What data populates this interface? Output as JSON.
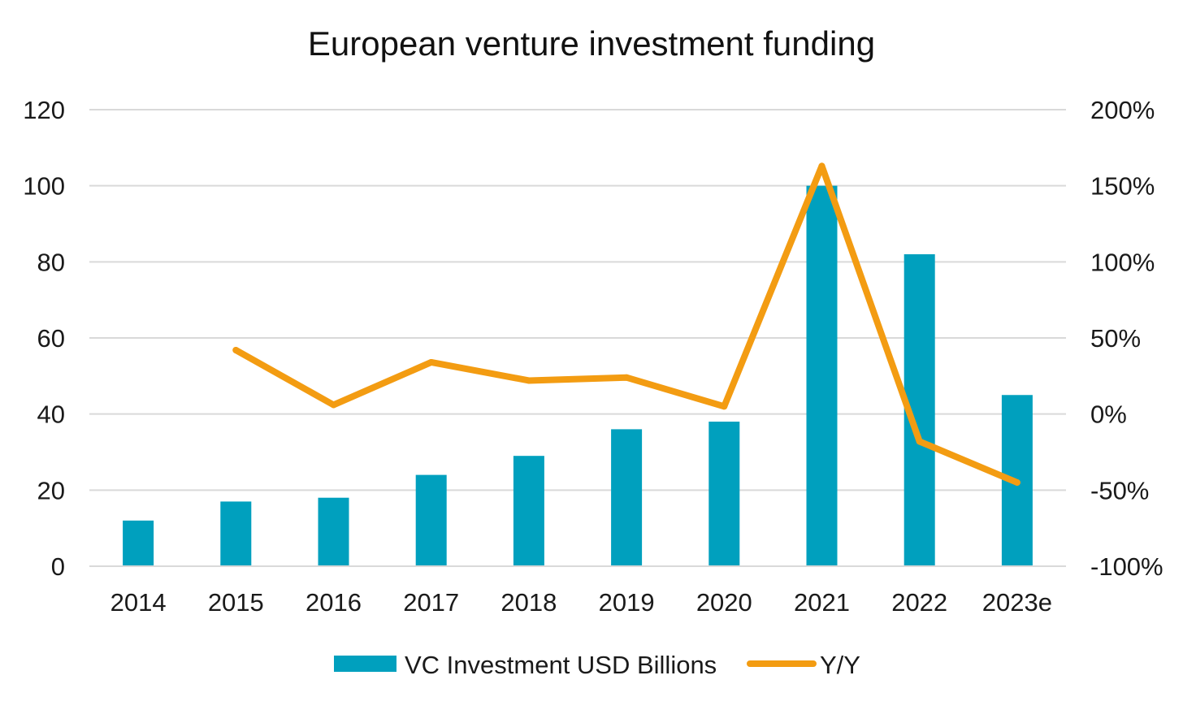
{
  "chart_data": {
    "type": "bar",
    "title": "European venture investment funding",
    "categories": [
      "2014",
      "2015",
      "2016",
      "2017",
      "2018",
      "2019",
      "2020",
      "2021",
      "2022",
      "2023e"
    ],
    "series": [
      {
        "name": "VC Investment USD Billions",
        "type": "bar",
        "axis": "left",
        "color": "#00a0be",
        "values": [
          12,
          17,
          18,
          24,
          29,
          36,
          38,
          100,
          82,
          45
        ]
      },
      {
        "name": "Y/Y",
        "type": "line",
        "axis": "right",
        "color": "#f39c12",
        "values": [
          null,
          42,
          6,
          34,
          22,
          24,
          5,
          163,
          -18,
          -45
        ]
      }
    ],
    "ylim_left": [
      0,
      120
    ],
    "yticks_left": [
      "0",
      "20",
      "40",
      "60",
      "80",
      "100",
      "120"
    ],
    "ylim_right": [
      -100,
      200
    ],
    "yticks_right": [
      "-100%",
      "-50%",
      "0%",
      "50%",
      "100%",
      "150%",
      "200%"
    ],
    "grid": true,
    "legend_position": "bottom"
  }
}
